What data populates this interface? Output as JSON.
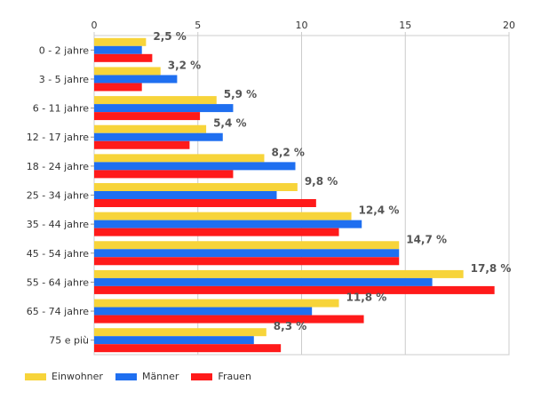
{
  "chart_data": {
    "type": "bar",
    "orientation": "horizontal",
    "title": "",
    "xlabel": "",
    "ylabel": "",
    "xlim": [
      0,
      20
    ],
    "x_ticks": [
      0,
      5,
      10,
      15,
      20
    ],
    "grid": true,
    "legend_position": "bottom-left",
    "categories": [
      "0 - 2 jahre",
      "3 - 5 jahre",
      "6 - 11 jahre",
      "12 - 17 jahre",
      "18 - 24 jahre",
      "25 - 34 jahre",
      "35 - 44 jahre",
      "45 - 54 jahre",
      "55 - 64 jahre",
      "65 - 74 jahre",
      "75 e più"
    ],
    "series": [
      {
        "name": "Einwohner",
        "color": "#f7d43a",
        "values": [
          2.5,
          3.2,
          5.9,
          5.4,
          8.2,
          9.8,
          12.4,
          14.7,
          17.8,
          11.8,
          8.3
        ]
      },
      {
        "name": "Männer",
        "color": "#1f6ff0",
        "values": [
          2.3,
          4.0,
          6.7,
          6.2,
          9.7,
          8.8,
          12.9,
          14.7,
          16.3,
          10.5,
          7.7
        ]
      },
      {
        "name": "Frauen",
        "color": "#ff1a1a",
        "values": [
          2.8,
          2.3,
          5.1,
          4.6,
          6.7,
          10.7,
          11.8,
          14.7,
          19.3,
          13.0,
          9.0
        ]
      }
    ],
    "data_labels": [
      "2,5 %",
      "3,2 %",
      "5,9 %",
      "5,4 %",
      "8,2 %",
      "9,8 %",
      "12,4 %",
      "14,7 %",
      "17,8 %",
      "11,8 %",
      "8,3 %"
    ]
  }
}
